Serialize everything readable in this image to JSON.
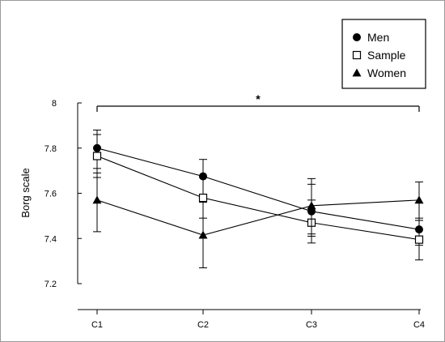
{
  "chart_data": {
    "type": "line",
    "categories": [
      "C1",
      "C2",
      "C3",
      "C4"
    ],
    "ylabel": "Borg scale",
    "xlabel": "",
    "ylim": [
      7.2,
      8.0
    ],
    "yticks": [
      "7.2",
      "7.4",
      "7.6",
      "7.8",
      "8"
    ],
    "legend_position": "top-right",
    "grid": false,
    "series": [
      {
        "name": "Men",
        "marker": "filled-circle",
        "values": [
          7.8,
          7.675,
          7.52,
          7.44
        ],
        "err_low": [
          7.69,
          7.59,
          7.41,
          7.37
        ],
        "err_high": [
          7.88,
          7.75,
          7.64,
          7.49
        ]
      },
      {
        "name": "Sample",
        "marker": "open-square",
        "values": [
          7.765,
          7.58,
          7.47,
          7.395
        ],
        "err_low": [
          7.67,
          7.49,
          7.38,
          7.305
        ],
        "err_high": [
          7.86,
          7.67,
          7.57,
          7.48
        ]
      },
      {
        "name": "Women",
        "marker": "filled-triangle",
        "values": [
          7.57,
          7.415,
          7.545,
          7.57
        ],
        "err_low": [
          7.43,
          7.27,
          7.42,
          7.48
        ],
        "err_high": [
          7.71,
          7.56,
          7.665,
          7.65
        ]
      }
    ],
    "annotation": {
      "text": "*",
      "from": "C1",
      "to": "C4"
    }
  }
}
